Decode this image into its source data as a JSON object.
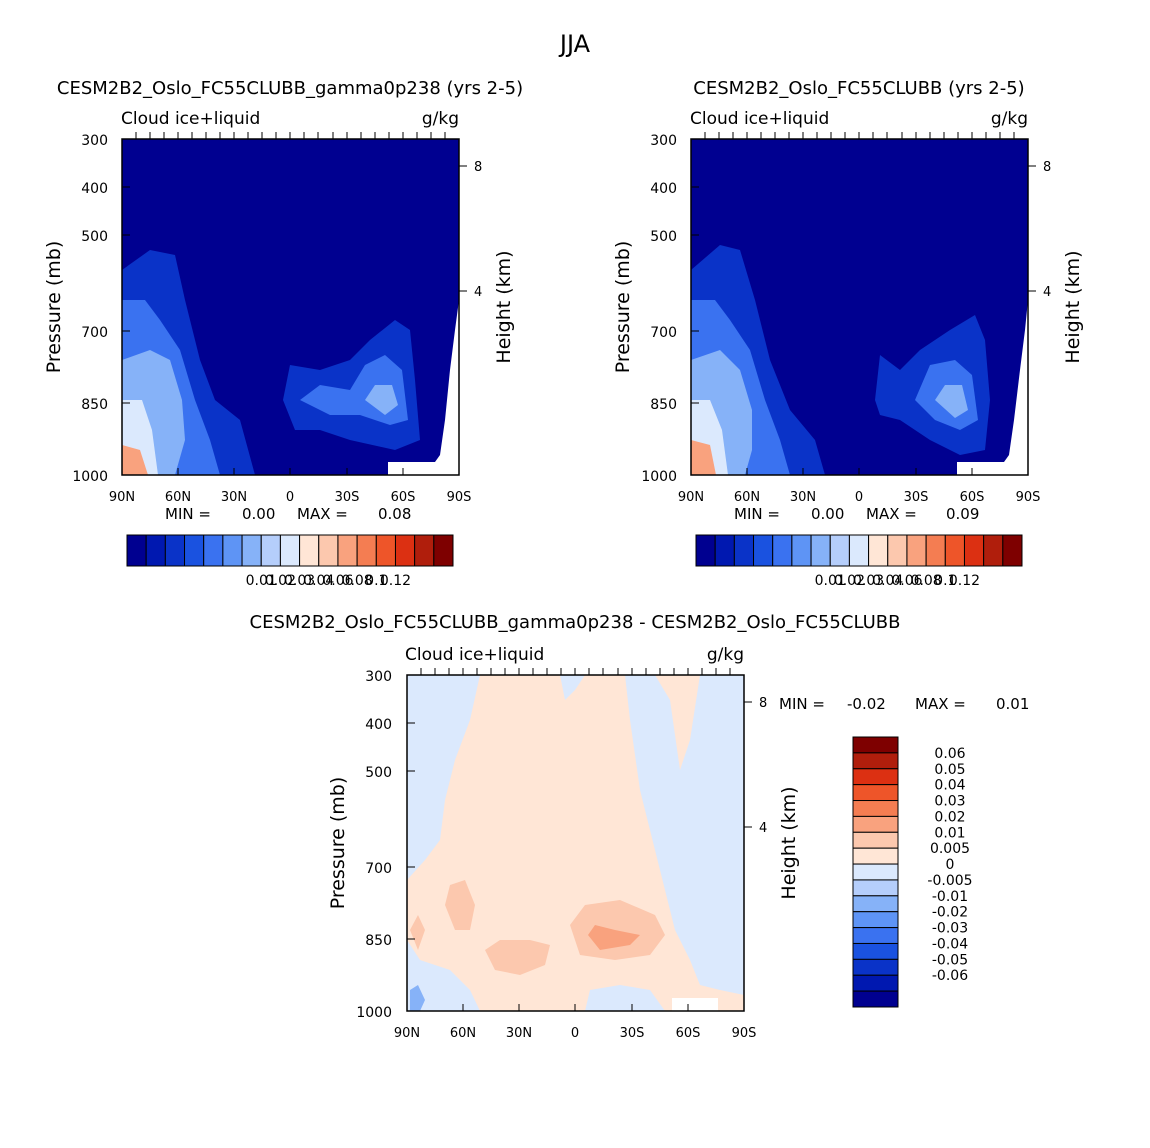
{
  "figure": {
    "title": "JJA"
  },
  "colors": {
    "frame": "#000000",
    "fill_levels": [
      "#000090",
      "#0018b0",
      "#0a33c8",
      "#1a52e0",
      "#3a72f0",
      "#5e94f5",
      "#86b2f8",
      "#b5cefb",
      "#dbe9fd",
      "#ffe6d6",
      "#fcc8ae",
      "#f9a27e",
      "#f47d52",
      "#ee5529",
      "#dc3012",
      "#b01e0c",
      "#7e0000"
    ]
  },
  "chart_data": [
    {
      "id": "panel-a",
      "type": "heatmap",
      "title": "CESM2B2_Oslo_FC55CLUBB_gamma0p238 (yrs 2-5)",
      "variable": "Cloud ice+liquid",
      "units": "g/kg",
      "ylabel": "Pressure (mb)",
      "ylabel_right": "Height (km)",
      "x_ticks": [
        "90N",
        "60N",
        "30N",
        "0",
        "30S",
        "60S",
        "90S"
      ],
      "y_ticks": [
        "300",
        "400",
        "500",
        "700",
        "850",
        "1000"
      ],
      "height_ticks": [
        "8",
        "4"
      ],
      "min_label": "MIN =",
      "min_value": "0.00",
      "max_label": "MAX =",
      "max_value": "0.08",
      "colorbar_labels": [
        "0.01",
        "0.02",
        "0.03",
        "0.04",
        "0.06",
        "0.08",
        "0.1",
        "0.12"
      ]
    },
    {
      "id": "panel-b",
      "type": "heatmap",
      "title": "CESM2B2_Oslo_FC55CLUBB (yrs 2-5)",
      "variable": "Cloud ice+liquid",
      "units": "g/kg",
      "ylabel": "Pressure (mb)",
      "ylabel_right": "Height (km)",
      "x_ticks": [
        "90N",
        "60N",
        "30N",
        "0",
        "30S",
        "60S",
        "90S"
      ],
      "y_ticks": [
        "300",
        "400",
        "500",
        "700",
        "850",
        "1000"
      ],
      "height_ticks": [
        "8",
        "4"
      ],
      "min_label": "MIN =",
      "min_value": "0.00",
      "max_label": "MAX =",
      "max_value": "0.09",
      "colorbar_labels": [
        "0.01",
        "0.02",
        "0.03",
        "0.04",
        "0.06",
        "0.08",
        "0.1",
        "0.12"
      ]
    },
    {
      "id": "panel-c",
      "type": "heatmap",
      "title": "CESM2B2_Oslo_FC55CLUBB_gamma0p238 - CESM2B2_Oslo_FC55CLUBB",
      "variable": "Cloud ice+liquid",
      "units": "g/kg",
      "ylabel": "Pressure (mb)",
      "ylabel_right": "Height (km)",
      "x_ticks": [
        "90N",
        "60N",
        "30N",
        "0",
        "30S",
        "60S",
        "90S"
      ],
      "y_ticks": [
        "300",
        "400",
        "500",
        "700",
        "850",
        "1000"
      ],
      "height_ticks": [
        "8",
        "4"
      ],
      "min_label": "MIN =",
      "min_value": "-0.02",
      "max_label": "MAX =",
      "max_value": "0.01",
      "colorbar_labels": [
        "0.06",
        "0.05",
        "0.04",
        "0.03",
        "0.02",
        "0.01",
        "0.005",
        "0",
        "-0.005",
        "-0.01",
        "-0.02",
        "-0.03",
        "-0.04",
        "-0.05",
        "-0.06"
      ]
    }
  ]
}
